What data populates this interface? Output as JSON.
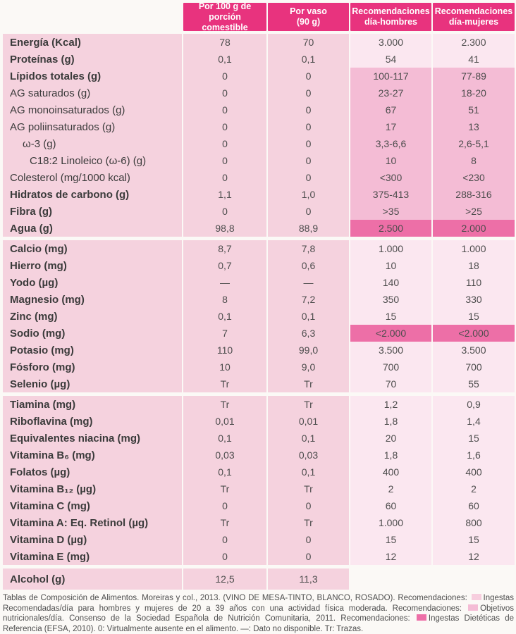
{
  "colors": {
    "header_bg": "#e8337e",
    "body_pink": "#f5d2de",
    "rec_light": "#fbe7f0",
    "rec_medium": "#f4bcd5",
    "rec_dark": "#ed6fa7"
  },
  "header": {
    "columns": [
      "Por 100 g de\nporción comestible",
      "Por vaso\n(90 g)",
      "Recomendaciones\ndía-hombres",
      "Recomendaciones\ndía-mujeres"
    ]
  },
  "blocks": [
    {
      "tall": false,
      "rows": [
        {
          "label": "Energía (Kcal)",
          "bold": true,
          "indent": 0,
          "per100": "78",
          "glass": "70",
          "men": "3.000",
          "women": "2.300",
          "rec": "light"
        },
        {
          "label": "Proteínas (g)",
          "bold": true,
          "indent": 0,
          "per100": "0,1",
          "glass": "0,1",
          "men": "54",
          "women": "41",
          "rec": "light"
        },
        {
          "label": "Lípidos totales (g)",
          "bold": true,
          "indent": 0,
          "per100": "0",
          "glass": "0",
          "men": "100-117",
          "women": "77-89",
          "rec": "medium"
        },
        {
          "label": "AG saturados (g)",
          "bold": false,
          "indent": 0,
          "per100": "0",
          "glass": "0",
          "men": "23-27",
          "women": "18-20",
          "rec": "medium"
        },
        {
          "label": "AG monoinsaturados (g)",
          "bold": false,
          "indent": 0,
          "per100": "0",
          "glass": "0",
          "men": "67",
          "women": "51",
          "rec": "medium"
        },
        {
          "label": "AG poliinsaturados (g)",
          "bold": false,
          "indent": 0,
          "per100": "0",
          "glass": "0",
          "men": "17",
          "women": "13",
          "rec": "medium"
        },
        {
          "label": "ω-3 (g)",
          "bold": false,
          "indent": 1,
          "per100": "0",
          "glass": "0",
          "men": "3,3-6,6",
          "women": "2,6-5,1",
          "rec": "medium"
        },
        {
          "label": "C18:2 Linoleico (ω-6) (g)",
          "bold": false,
          "indent": 2,
          "per100": "0",
          "glass": "0",
          "men": "10",
          "women": "8",
          "rec": "medium"
        },
        {
          "label": "Colesterol (mg/1000 kcal)",
          "bold": false,
          "indent": 0,
          "per100": "0",
          "glass": "0",
          "men": "<300",
          "women": "<230",
          "rec": "medium"
        },
        {
          "label": "Hidratos de carbono (g)",
          "bold": true,
          "indent": 0,
          "per100": "1,1",
          "glass": "1,0",
          "men": "375-413",
          "women": "288-316",
          "rec": "medium"
        },
        {
          "label": "Fibra (g)",
          "bold": true,
          "indent": 0,
          "per100": "0",
          "glass": "0",
          "men": ">35",
          "women": ">25",
          "rec": "medium"
        },
        {
          "label": "Agua (g)",
          "bold": true,
          "indent": 0,
          "per100": "98,8",
          "glass": "88,9",
          "men": "2.500",
          "women": "2.000",
          "rec": "dark"
        }
      ]
    },
    {
      "tall": false,
      "rows": [
        {
          "label": "Calcio (mg)",
          "bold": true,
          "indent": 0,
          "per100": "8,7",
          "glass": "7,8",
          "men": "1.000",
          "women": "1.000",
          "rec": "light"
        },
        {
          "label": "Hierro (mg)",
          "bold": true,
          "indent": 0,
          "per100": "0,7",
          "glass": "0,6",
          "men": "10",
          "women": "18",
          "rec": "light"
        },
        {
          "label": "Yodo (µg)",
          "bold": true,
          "indent": 0,
          "per100": "—",
          "glass": "—",
          "men": "140",
          "women": "110",
          "rec": "light"
        },
        {
          "label": "Magnesio (mg)",
          "bold": true,
          "indent": 0,
          "per100": "8",
          "glass": "7,2",
          "men": "350",
          "women": "330",
          "rec": "light"
        },
        {
          "label": "Zinc (mg)",
          "bold": true,
          "indent": 0,
          "per100": "0,1",
          "glass": "0,1",
          "men": "15",
          "women": "15",
          "rec": "light"
        },
        {
          "label": "Sodio (mg)",
          "bold": true,
          "indent": 0,
          "per100": "7",
          "glass": "6,3",
          "men": "<2.000",
          "women": "<2.000",
          "rec": "dark"
        },
        {
          "label": "Potasio (mg)",
          "bold": true,
          "indent": 0,
          "per100": "110",
          "glass": "99,0",
          "men": "3.500",
          "women": "3.500",
          "rec": "light"
        },
        {
          "label": "Fósforo (mg)",
          "bold": true,
          "indent": 0,
          "per100": "10",
          "glass": "9,0",
          "men": "700",
          "women": "700",
          "rec": "light"
        },
        {
          "label": "Selenio (µg)",
          "bold": true,
          "indent": 0,
          "per100": "Tr",
          "glass": "Tr",
          "men": "70",
          "women": "55",
          "rec": "light"
        }
      ]
    },
    {
      "tall": false,
      "rows": [
        {
          "label": "Tiamina (mg)",
          "bold": true,
          "indent": 0,
          "per100": "Tr",
          "glass": "Tr",
          "men": "1,2",
          "women": "0,9",
          "rec": "light"
        },
        {
          "label": "Riboflavina (mg)",
          "bold": true,
          "indent": 0,
          "per100": "0,01",
          "glass": "0,01",
          "men": "1,8",
          "women": "1,4",
          "rec": "light"
        },
        {
          "label": "Equivalentes niacina (mg)",
          "bold": true,
          "indent": 0,
          "per100": "0,1",
          "glass": "0,1",
          "men": "20",
          "women": "15",
          "rec": "light"
        },
        {
          "label": "Vitamina B₆ (mg)",
          "bold": true,
          "indent": 0,
          "per100": "0,03",
          "glass": "0,03",
          "men": "1,8",
          "women": "1,6",
          "rec": "light"
        },
        {
          "label": "Folatos (µg)",
          "bold": true,
          "indent": 0,
          "per100": "0,1",
          "glass": "0,1",
          "men": "400",
          "women": "400",
          "rec": "light"
        },
        {
          "label": "Vitamina B₁₂ (µg)",
          "bold": true,
          "indent": 0,
          "per100": "Tr",
          "glass": "Tr",
          "men": "2",
          "women": "2",
          "rec": "light"
        },
        {
          "label": "Vitamina C (mg)",
          "bold": true,
          "indent": 0,
          "per100": "0",
          "glass": "0",
          "men": "60",
          "women": "60",
          "rec": "light"
        },
        {
          "label": "Vitamina A: Eq. Retinol (µg)",
          "bold": true,
          "indent": 0,
          "per100": "Tr",
          "glass": "Tr",
          "men": "1.000",
          "women": "800",
          "rec": "light"
        },
        {
          "label": "Vitamina D (µg)",
          "bold": true,
          "indent": 0,
          "per100": "0",
          "glass": "0",
          "men": "15",
          "women": "15",
          "rec": "light"
        },
        {
          "label": "Vitamina E (mg)",
          "bold": true,
          "indent": 0,
          "per100": "0",
          "glass": "0",
          "men": "12",
          "women": "12",
          "rec": "light"
        }
      ]
    },
    {
      "tall": true,
      "rows": [
        {
          "label": "Alcohol (g)",
          "bold": true,
          "indent": 0,
          "per100": "12,5",
          "glass": "11,3",
          "men": "",
          "women": "",
          "rec": "none"
        }
      ]
    }
  ],
  "footer": {
    "segments": [
      {
        "t": "text",
        "v": "Tablas de Composición de Alimentos. Moreiras y col., 2013. (VINO DE MESA-TINTO, BLANCO, ROSADO). Recomendaciones:"
      },
      {
        "t": "swatch",
        "v": "light"
      },
      {
        "t": "text",
        "v": "Ingestas Recomendadas/día para hombres y mujeres de 20 a 39 años con una actividad física moderada. Recomendaciones:"
      },
      {
        "t": "swatch",
        "v": "medium"
      },
      {
        "t": "text",
        "v": "Objetivos nutricionales/día. Consenso de la Sociedad Española de Nutrición Comunitaria, 2011. Recomendaciones:"
      },
      {
        "t": "swatch",
        "v": "dark"
      },
      {
        "t": "text",
        "v": "Ingestas Dietéticas de Referencia (EFSA, 2010). 0: Virtualmente ausente en el alimento. —: Dato no disponible. Tr: Trazas."
      }
    ]
  }
}
